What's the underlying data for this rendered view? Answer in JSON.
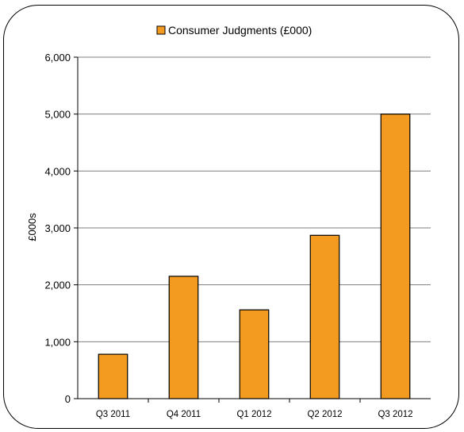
{
  "chart_data": {
    "type": "bar",
    "legend_position": "top",
    "legend_label": "Consumer Judgments (£000)",
    "ylabel": "£000s",
    "ylim": [
      0,
      6000
    ],
    "yticks": [
      0,
      1000,
      2000,
      3000,
      4000,
      5000,
      6000
    ],
    "ytick_labels": [
      "0",
      "1,000",
      "2,000",
      "3,000",
      "4,000",
      "5,000",
      "6,000"
    ],
    "categories": [
      "Q3 2011",
      "Q4 2011",
      "Q1 2012",
      "Q2 2012",
      "Q3 2012"
    ],
    "values": [
      780,
      2150,
      1560,
      2870,
      5000
    ],
    "grid": true,
    "colors": {
      "bar": "#F39A21",
      "bar_stroke": "#000000",
      "grid": "#7f7f7f"
    }
  }
}
